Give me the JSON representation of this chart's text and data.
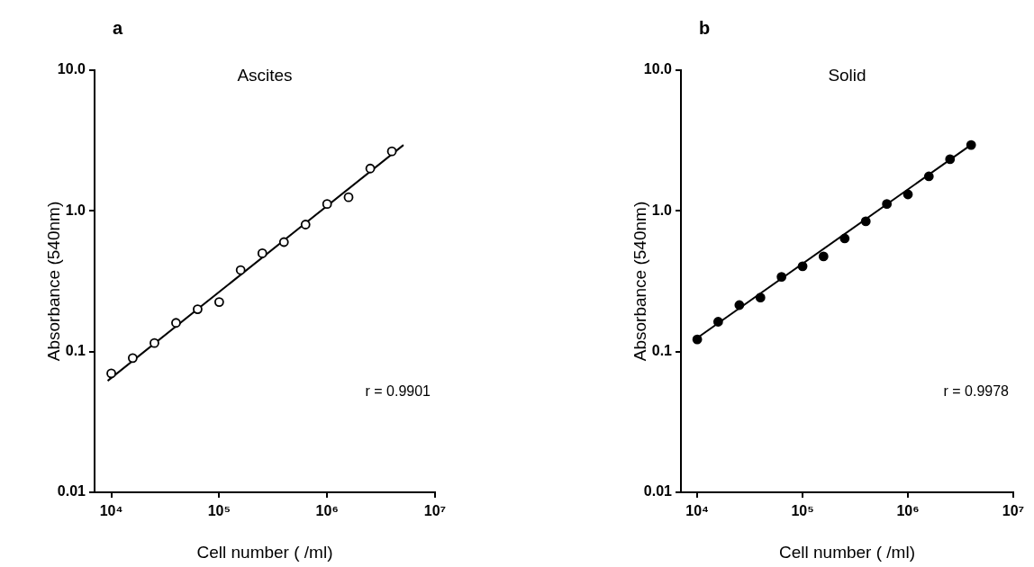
{
  "chart_data": [
    {
      "type": "scatter",
      "title": "a",
      "subtitle": "Ascites",
      "xlabel": "Cell number ( /ml)",
      "ylabel": "Absorbance (540nm)",
      "log": "xy",
      "xlim": [
        7000,
        10000000
      ],
      "ylim": [
        0.01,
        10
      ],
      "xticks": [
        {
          "value": 10000,
          "label": "10⁴"
        },
        {
          "value": 100000,
          "label": "10⁵"
        },
        {
          "value": 1000000,
          "label": "10⁶"
        },
        {
          "value": 10000000,
          "label": "10⁷"
        }
      ],
      "yticks": [
        {
          "value": 0.01,
          "label": "0.01"
        },
        {
          "value": 0.1,
          "label": "0.1"
        },
        {
          "value": 1,
          "label": "1.0"
        },
        {
          "value": 10,
          "label": "10.0"
        }
      ],
      "annotations": [
        "r = 0.9901"
      ],
      "series": [
        {
          "type": "scatter",
          "marker": "circle",
          "color": "#000000",
          "x": [
            10000,
            15800,
            25100,
            39800,
            63100,
            100000,
            158000,
            251000,
            398000,
            631000,
            1000000,
            1580000,
            2510000,
            3980000
          ],
          "values": [
            0.07,
            0.09,
            0.115,
            0.16,
            0.2,
            0.225,
            0.38,
            0.5,
            0.6,
            0.8,
            1.12,
            1.25,
            2.0,
            2.65
          ]
        },
        {
          "type": "line",
          "marker": "none",
          "color": "#000000",
          "x": [
            9260,
            5100000
          ],
          "values": [
            0.062,
            2.94
          ]
        }
      ]
    },
    {
      "type": "scatter",
      "title": "b",
      "subtitle": "Solid",
      "xlabel": "Cell number ( /ml)",
      "ylabel": "Absorbance (540nm)",
      "log": "xy",
      "xlim": [
        7000,
        10000000
      ],
      "ylim": [
        0.01,
        10
      ],
      "xticks": [
        {
          "value": 10000,
          "label": "10⁴"
        },
        {
          "value": 100000,
          "label": "10⁵"
        },
        {
          "value": 1000000,
          "label": "10⁶"
        },
        {
          "value": 10000000,
          "label": "10⁷"
        }
      ],
      "yticks": [
        {
          "value": 0.01,
          "label": "0.01"
        },
        {
          "value": 0.1,
          "label": "0.1"
        },
        {
          "value": 1,
          "label": "1.0"
        },
        {
          "value": 10,
          "label": "10.0"
        }
      ],
      "annotations": [
        "r = 0.9978"
      ],
      "series": [
        {
          "type": "scatter",
          "marker": "circle",
          "color": "#000000",
          "x": [
            10000,
            15800,
            25100,
            39800,
            63100,
            100000,
            158000,
            251000,
            398000,
            631000,
            1000000,
            1580000,
            2510000,
            3980000
          ],
          "values": [
            0.122,
            0.163,
            0.214,
            0.242,
            0.34,
            0.404,
            0.475,
            0.637,
            0.843,
            1.12,
            1.31,
            1.76,
            2.33,
            2.94
          ]
        },
        {
          "type": "line",
          "marker": "none",
          "color": "#000000",
          "x": [
            10000,
            3980000
          ],
          "values": [
            0.125,
            2.95
          ]
        }
      ]
    }
  ]
}
